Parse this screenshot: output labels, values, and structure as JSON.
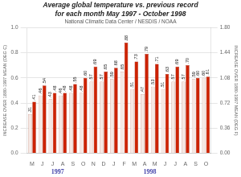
{
  "chart_data": {
    "type": "bar",
    "title": [
      "Average global temperature vs. previous record",
      "for each month May 1997 - October 1998"
    ],
    "subtitle": "National Climatic Data Center / NESDIS / NOAA",
    "categories": [
      "M",
      "J",
      "J",
      "A",
      "S",
      "O",
      "N",
      "D",
      "J",
      "F",
      "M",
      "A",
      "M",
      "J",
      "J",
      "A",
      "S",
      "O"
    ],
    "series": [
      {
        "color": "#f5e8e4",
        "values": [
          0.31,
          0.46,
          0.43,
          0.46,
          0.48,
          0.48,
          0.57,
          0.57,
          0.59,
          0.65,
          0.51,
          0.47,
          0.53,
          0.51,
          0.57,
          0.57,
          0.59,
          0.6
        ],
        "value_labels": [
          ".31",
          ".46",
          ".43",
          ".46",
          ".48",
          ".48",
          ".57",
          ".57",
          ".59",
          ".65",
          ".51",
          ".47",
          ".53",
          ".51",
          ".57",
          ".57",
          ".59",
          ".60"
        ]
      },
      {
        "color": "#cc2200",
        "values": [
          0.41,
          0.54,
          0.48,
          0.48,
          0.55,
          0.6,
          0.69,
          0.65,
          0.68,
          0.88,
          0.73,
          0.79,
          0.71,
          0.63,
          0.69,
          0.7,
          0.6,
          0.61
        ],
        "value_labels": [
          ".41",
          ".54",
          ".48",
          ".48",
          ".55",
          ".60",
          ".69",
          ".65",
          ".68",
          ".88",
          ".73",
          ".79",
          ".71",
          ".63",
          ".69",
          ".70",
          ".60",
          ".61"
        ]
      }
    ],
    "ylabel": "INCREASE OVER 1880-1997 MEAN (DEG C)",
    "y2label": "INCREASE OVER 1880-1997 MEAN (DEG F)",
    "ylim": [
      0.0,
      1.0
    ],
    "yticks": [
      {
        "value": 0,
        "label": "0.0"
      },
      0.2,
      0.4,
      0.6,
      0.8,
      {
        "value": 1,
        "label": "1.0"
      }
    ],
    "y2lim": [
      0.0,
      1.8
    ],
    "y2ticks": [
      {
        "value": 0,
        "label": "0.00"
      },
      0.36,
      0.72,
      1.08,
      1.44,
      {
        "value": 1.8,
        "label": "1.80"
      }
    ],
    "grid": true,
    "data_labels": true,
    "annotations": [
      "1997",
      "1998"
    ]
  }
}
